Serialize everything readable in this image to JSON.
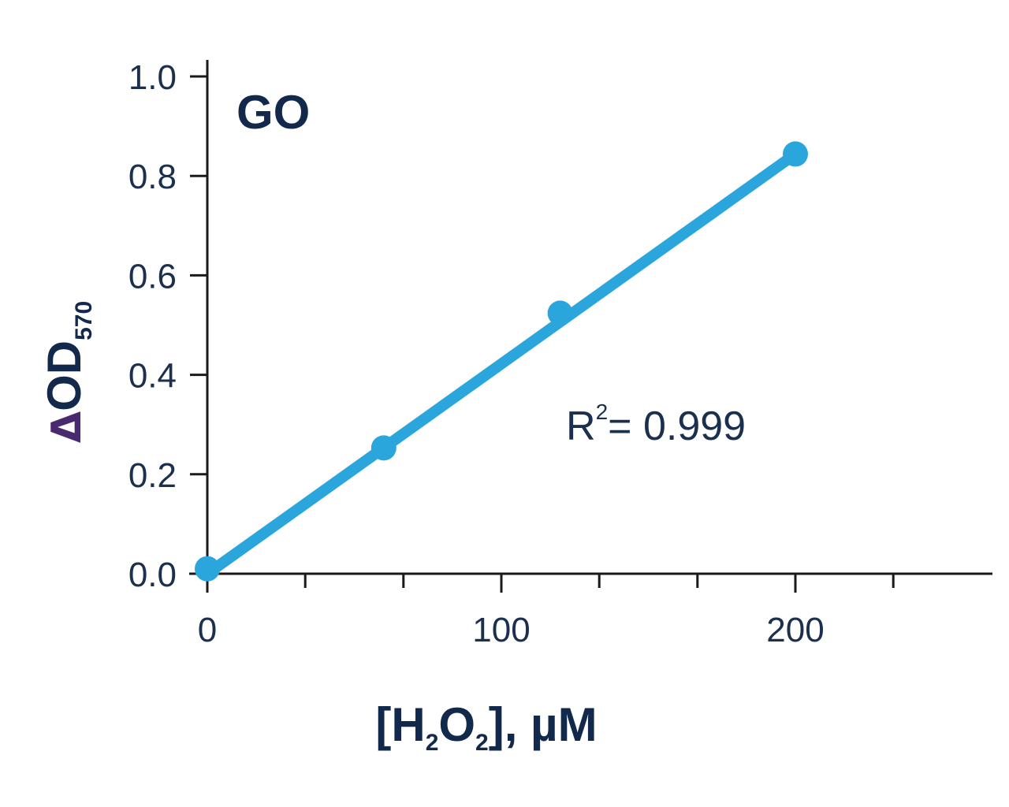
{
  "chart_data": {
    "type": "scatter",
    "title": "GO",
    "xlabel": {
      "open": "[H",
      "sub1": "2",
      "mid": "O",
      "sub2": "2",
      "close": "], µM"
    },
    "ylabel": {
      "prefix": "Δ",
      "main": "OD",
      "sub": "570"
    },
    "xlim": [
      0,
      270
    ],
    "ylim": [
      0,
      1.0
    ],
    "x_ticks": [
      0,
      100,
      200
    ],
    "x_tick_labels": [
      "0",
      "100",
      "200"
    ],
    "x_minor_ticks": [
      33.3,
      66.7,
      133.3,
      166.7,
      233.3
    ],
    "y_ticks": [
      0,
      0.2,
      0.4,
      0.6,
      0.8,
      1.0
    ],
    "y_tick_labels": [
      "0.0",
      "0.2",
      "0.4",
      "0.6",
      "0.8",
      "1.0"
    ],
    "series": [
      {
        "x": [
          0,
          60,
          120,
          200
        ],
        "y": [
          0.01,
          0.253,
          0.524,
          0.844
        ]
      }
    ],
    "fit_line": {
      "x": [
        0,
        200
      ],
      "y": [
        0.0,
        0.844
      ]
    },
    "annotation": {
      "base": "R",
      "sup": "2",
      "rest": "= 0.999"
    },
    "grid": false,
    "colors": {
      "series": "#2aa6dc",
      "axis": "#1a1a1a",
      "text": "#1b2f4e"
    }
  }
}
